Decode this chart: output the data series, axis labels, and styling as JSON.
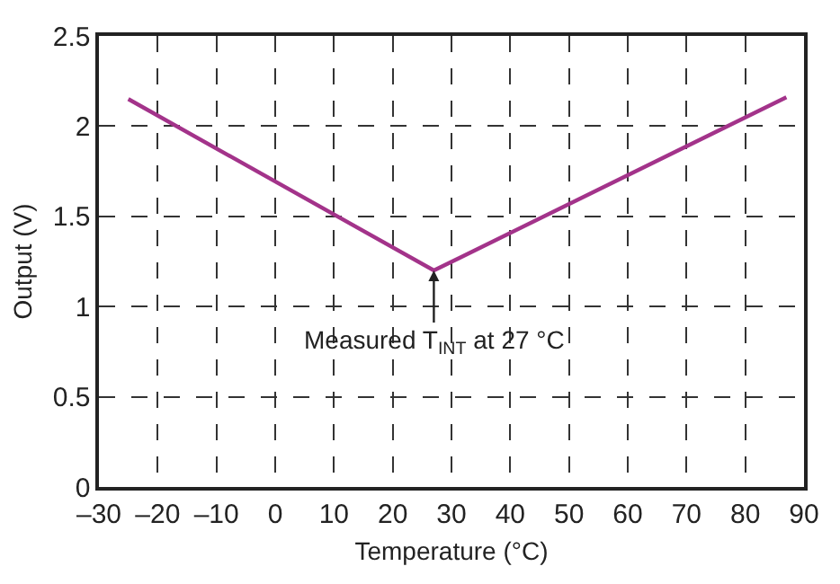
{
  "chart_data": {
    "type": "line",
    "xlabel": "Temperature (°C)",
    "ylabel": "Output (V)",
    "x": [
      -25,
      27,
      87
    ],
    "series": [
      {
        "color": "#a3338a",
        "values": [
          2.15,
          1.2,
          2.16
        ]
      }
    ],
    "xlim": [
      -30,
      90
    ],
    "xticks": [
      {
        "value": -30,
        "label": "–30"
      },
      {
        "value": -20,
        "label": "–20"
      },
      {
        "value": -10,
        "label": "–10"
      },
      0,
      10,
      20,
      30,
      40,
      50,
      60,
      70,
      80,
      90
    ],
    "ylim": [
      0,
      2.5
    ],
    "yticks": [
      0,
      0.5,
      1,
      1.5,
      2,
      2.5
    ],
    "grid": true,
    "line_style": "solid",
    "marker": "none",
    "annotations": [
      {
        "text": "Measured T$_{INT}$ at 27 °C",
        "x": 27,
        "y": 1.2
      }
    ]
  }
}
